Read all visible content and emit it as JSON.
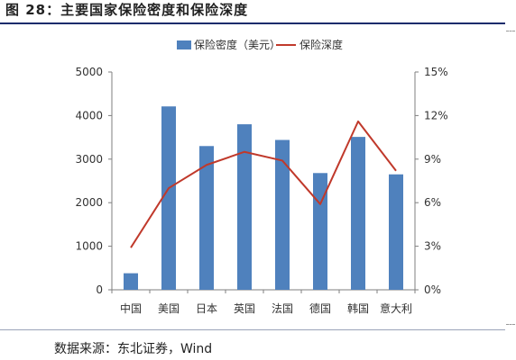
{
  "figure": {
    "title": "图  28：主要国家保险密度和保险深度",
    "source": "数据来源：东北证券，Wind"
  },
  "chart_data": {
    "type": "bar+line",
    "categories": [
      "中国",
      "美国",
      "日本",
      "英国",
      "法国",
      "德国",
      "韩国",
      "意大利"
    ],
    "series": [
      {
        "name": "保险密度（美元）",
        "type": "bar",
        "axis": "left",
        "color": "#4f81bd",
        "values": [
          380,
          4210,
          3300,
          3800,
          3440,
          2680,
          3510,
          2650
        ]
      },
      {
        "name": "保险深度",
        "type": "line",
        "axis": "right",
        "color": "#c0392b",
        "values": [
          2.9,
          7.0,
          8.6,
          9.5,
          8.9,
          5.9,
          11.6,
          8.2
        ]
      }
    ],
    "y_left": {
      "min": 0,
      "max": 5000,
      "ticks": [
        "0",
        "1000",
        "2000",
        "3000",
        "4000",
        "5000"
      ]
    },
    "y_right": {
      "min": 0,
      "max": 15,
      "ticks": [
        "0%",
        "3%",
        "6%",
        "9%",
        "12%",
        "15%"
      ]
    },
    "legend_position": "top-center",
    "grid": false
  }
}
